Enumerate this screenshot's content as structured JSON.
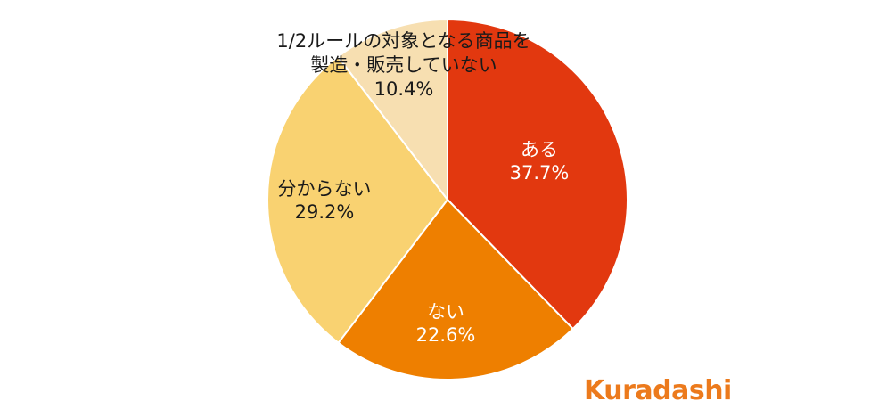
{
  "chart_data": {
    "type": "pie",
    "start_angle": "12 o'clock",
    "direction": "clockwise",
    "slices": [
      {
        "label": "ある",
        "value": 37.7,
        "value_text": "37.7%",
        "color": "#e2380f",
        "label_color": "#ffffff"
      },
      {
        "label": "ない",
        "value": 22.6,
        "value_text": "22.6%",
        "color": "#ee7f00",
        "label_color": "#ffffff"
      },
      {
        "label": "分からない",
        "value": 29.2,
        "value_text": "29.2%",
        "color": "#f9d271",
        "label_color": "#1a1a1a"
      },
      {
        "label_lines": [
          "1/2ルールの対象となる商品を",
          "製造・販売していない"
        ],
        "value": 10.4,
        "value_text": "10.4%",
        "color": "#f7dfb1",
        "label_color": "#1a1a1a"
      }
    ],
    "separator_color": "#ffffff"
  },
  "logo": {
    "text": "Kuradashi",
    "color": "#ec7a1c"
  }
}
